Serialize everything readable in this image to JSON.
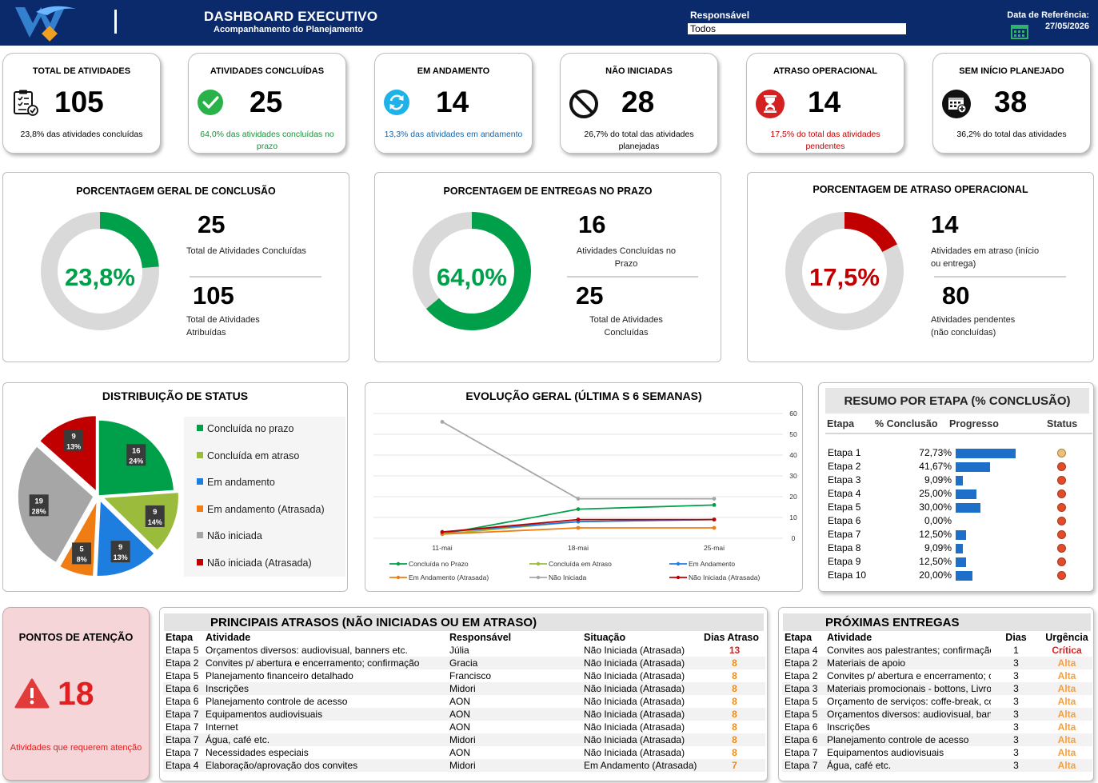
{
  "header": {
    "title": "DASHBOARD EXECUTIVO",
    "subtitle": "Acompanhamento do Planejamento",
    "responsavel_label": "Responsável",
    "responsavel_value": "Todos",
    "ref_label": "Data de Referência:",
    "ref_date": "27/05/2026"
  },
  "kpis": [
    {
      "title": "TOTAL DE ATIVIDADES",
      "value": "105",
      "note": "23,8% das atividades concluídas",
      "icon": "clipboard-checklist-icon",
      "note_color": "#000000"
    },
    {
      "title": "ATIVIDADES CONCLUÍDAS",
      "value": "25",
      "note": "64,0% das atividades concluídas no prazo",
      "icon": "check-circle-icon",
      "note_color": "#1a8f3c"
    },
    {
      "title": "EM ANDAMENTO",
      "value": "14",
      "note": "13,3% das atividades em andamento",
      "icon": "refresh-circle-icon",
      "note_color": "#1565a8"
    },
    {
      "title": "NÃO INICIADAS",
      "value": "28",
      "note": "26,7% do total das atividades planejadas",
      "icon": "blocked-icon",
      "note_color": "#000000"
    },
    {
      "title": "ATRASO OPERACIONAL",
      "value": "14",
      "note": "17,5% do total das atividades pendentes",
      "icon": "hourglass-icon",
      "note_color": "#c00000"
    },
    {
      "title": "SEM INÍCIO PLANEJADO",
      "value": "38",
      "note": "36,2% do total das atividades",
      "icon": "calendar-add-icon",
      "note_color": "#000000"
    }
  ],
  "gauges": [
    {
      "title": "PORCENTAGEM GERAL DE CONCLUSÃO",
      "percent_label": "23,8%",
      "fraction": 0.238,
      "color": "#00a04a",
      "top_value": "25",
      "top_label": "Total de Atividades Concluídas",
      "bottom_value": "105",
      "bottom_label": "Total de Atividades Atribuídas"
    },
    {
      "title": "PORCENTAGEM DE ENTREGAS NO PRAZO",
      "percent_label": "64,0%",
      "fraction": 0.64,
      "color": "#00a04a",
      "top_value": "16",
      "top_label": "Atividades Concluídas no Prazo",
      "bottom_value": "25",
      "bottom_label": "Total de Atividades Concluídas"
    },
    {
      "title": "PORCENTAGEM DE ATRASO OPERACIONAL",
      "percent_label": "17,5%",
      "fraction": 0.175,
      "color": "#c00000",
      "top_value": "14",
      "top_label": "Atividades em atraso (início ou entrega)",
      "bottom_value": "80",
      "bottom_label": "Atividades pendentes (não concluídas)"
    }
  ],
  "status_pie": {
    "title": "DISTRIBUIÇÃO DE STATUS",
    "slices": [
      {
        "name": "Concluída no prazo",
        "value": 16,
        "pct": "24%",
        "color": "#00a04a"
      },
      {
        "name": "Concluída em atraso",
        "value": 9,
        "pct": "14%",
        "color": "#9bbb3c"
      },
      {
        "name": "Em andamento",
        "value": 9,
        "pct": "13%",
        "color": "#1e7ee0"
      },
      {
        "name": "Em andamento (Atrasada)",
        "value": 5,
        "pct": "8%",
        "color": "#f07d14"
      },
      {
        "name": "Não iniciada",
        "value": 19,
        "pct": "28%",
        "color": "#a6a6a6"
      },
      {
        "name": "Não iniciada (Atrasada)",
        "value": 9,
        "pct": "13%",
        "color": "#c00000"
      }
    ]
  },
  "chart_data": {
    "type": "line",
    "title": "EVOLUÇÃO GERAL (ÚLTIMA S 6 SEMANAS)",
    "x": [
      "11-mai",
      "18-mai",
      "25-mai"
    ],
    "ylim": [
      0,
      60
    ],
    "yticks": [
      0,
      10,
      20,
      30,
      40,
      50,
      60
    ],
    "series": [
      {
        "name": "Concluída no Prazo",
        "values": [
          2,
          14,
          16
        ],
        "color": "#00a04a"
      },
      {
        "name": "Concluída em Atraso",
        "values": [
          2,
          8,
          9
        ],
        "color": "#9bbb3c"
      },
      {
        "name": "Em Andamento",
        "values": [
          3,
          8,
          9
        ],
        "color": "#1e7ee0"
      },
      {
        "name": "Em Andamento (Atrasada)",
        "values": [
          2,
          5,
          5
        ],
        "color": "#f07d14"
      },
      {
        "name": "Não Iniciada",
        "values": [
          56,
          19,
          19
        ],
        "color": "#a6a6a6"
      },
      {
        "name": "Não Iniciada (Atrasada)",
        "values": [
          3,
          9,
          9
        ],
        "color": "#c00000"
      }
    ]
  },
  "resumo": {
    "title": "RESUMO POR ETAPA (% CONCLUSÃO)",
    "headers": [
      "Etapa",
      "% Conclusão",
      "Progresso",
      "Status"
    ],
    "rows": [
      {
        "etapa": "Etapa 1",
        "pct": "72,73%",
        "frac": 0.7273,
        "status": "amber"
      },
      {
        "etapa": "Etapa 2",
        "pct": "41,67%",
        "frac": 0.4167,
        "status": "red"
      },
      {
        "etapa": "Etapa 3",
        "pct": "9,09%",
        "frac": 0.0909,
        "status": "red"
      },
      {
        "etapa": "Etapa 4",
        "pct": "25,00%",
        "frac": 0.25,
        "status": "red"
      },
      {
        "etapa": "Etapa 5",
        "pct": "30,00%",
        "frac": 0.3,
        "status": "red"
      },
      {
        "etapa": "Etapa 6",
        "pct": "0,00%",
        "frac": 0,
        "status": "red"
      },
      {
        "etapa": "Etapa 7",
        "pct": "12,50%",
        "frac": 0.125,
        "status": "red"
      },
      {
        "etapa": "Etapa 8",
        "pct": "9,09%",
        "frac": 0.0909,
        "status": "red"
      },
      {
        "etapa": "Etapa 9",
        "pct": "12,50%",
        "frac": 0.125,
        "status": "red"
      },
      {
        "etapa": "Etapa 10",
        "pct": "20,00%",
        "frac": 0.2,
        "status": "red"
      }
    ]
  },
  "atencao": {
    "title": "PONTOS DE ATENÇÃO",
    "value": "18",
    "note": "Atividades que requerem atenção"
  },
  "atrasos": {
    "title": "PRINCIPAIS ATRASOS (NÃO INICIADAS OU EM ATRASO)",
    "headers": [
      "Etapa",
      "Atividade",
      "Responsável",
      "Situação",
      "Dias Atraso"
    ],
    "rows": [
      [
        "Etapa 5",
        "Orçamentos diversos: audiovisual, banners etc.",
        "Júlia",
        "Não Iniciada (Atrasada)",
        "13"
      ],
      [
        "Etapa 2",
        "Convites p/ abertura e encerramento; confirmação",
        "Gracia",
        "Não Iniciada (Atrasada)",
        "8"
      ],
      [
        "Etapa 5",
        "Planejamento financeiro detalhado",
        "Francisco",
        "Não Iniciada (Atrasada)",
        "8"
      ],
      [
        "Etapa 6",
        "Inscrições",
        "Midori",
        "Não Iniciada (Atrasada)",
        "8"
      ],
      [
        "Etapa 6",
        "Planejamento controle de acesso",
        "AON",
        "Não Iniciada (Atrasada)",
        "8"
      ],
      [
        "Etapa 7",
        "Equipamentos audiovisuais",
        "AON",
        "Não Iniciada (Atrasada)",
        "8"
      ],
      [
        "Etapa 7",
        "Internet",
        "AON",
        "Não Iniciada (Atrasada)",
        "8"
      ],
      [
        "Etapa 7",
        "Água, café etc.",
        "Midori",
        "Não Iniciada (Atrasada)",
        "8"
      ],
      [
        "Etapa 7",
        "Necessidades especiais",
        "AON",
        "Não Iniciada (Atrasada)",
        "8"
      ],
      [
        "Etapa 4",
        "Elaboração/aprovação dos convites",
        "Midori",
        "Em Andamento (Atrasada)",
        "7"
      ]
    ]
  },
  "entregas": {
    "title": "PRÓXIMAS ENTREGAS",
    "headers": [
      "Etapa",
      "Atividade",
      "Dias",
      "Urgência"
    ],
    "rows": [
      [
        "Etapa 4",
        "Convites aos palestrantes; confirmação",
        "1",
        "Crítica"
      ],
      [
        "Etapa 2",
        "Materiais de apoio",
        "3",
        "Alta"
      ],
      [
        "Etapa 2",
        "Convites p/ abertura e encerramento; confirmação",
        "3",
        "Alta"
      ],
      [
        "Etapa 3",
        "Materiais promocionais - bottons, Livros",
        "3",
        "Alta"
      ],
      [
        "Etapa 5",
        "Orçamento de serviços: coffe-break, coquetel",
        "3",
        "Alta"
      ],
      [
        "Etapa 5",
        "Orçamentos diversos: audiovisual, banners etc.",
        "3",
        "Alta"
      ],
      [
        "Etapa 6",
        "Inscrições",
        "3",
        "Alta"
      ],
      [
        "Etapa 6",
        "Planejamento controle de acesso",
        "3",
        "Alta"
      ],
      [
        "Etapa 7",
        "Equipamentos audiovisuais",
        "3",
        "Alta"
      ],
      [
        "Etapa 7",
        "Água, café etc.",
        "3",
        "Alta"
      ]
    ]
  }
}
